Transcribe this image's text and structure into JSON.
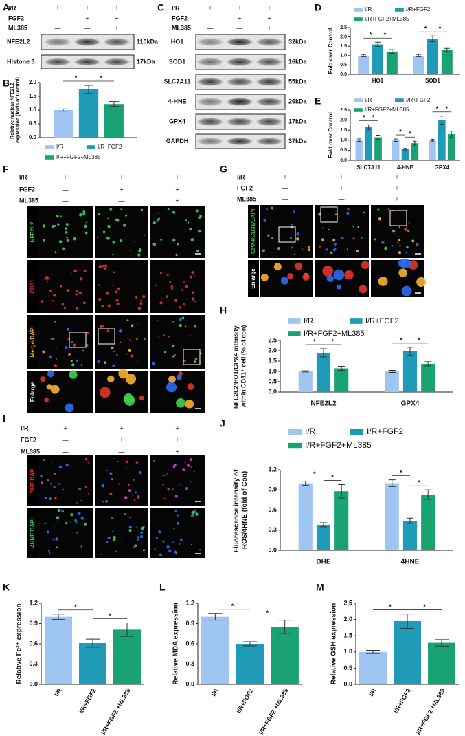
{
  "blots": [
    {
      "label": "A",
      "conditions": [
        {
          "name": "I/R",
          "signs": [
            "+",
            "+",
            "+"
          ]
        },
        {
          "name": "FGF2",
          "signs": [
            "—",
            "+",
            "+"
          ]
        },
        {
          "name": "ML385",
          "signs": [
            "—",
            "—",
            "+"
          ]
        }
      ],
      "bands": [
        {
          "name": "NFE2L2",
          "size": "110kDa"
        },
        {
          "name": "Histone 3",
          "size": "17kDa"
        }
      ]
    },
    {
      "label": "C",
      "conditions": [
        {
          "name": "I/R",
          "signs": [
            "+",
            "+",
            "+"
          ]
        },
        {
          "name": "FGF2",
          "signs": [
            "—",
            "+",
            "+"
          ]
        },
        {
          "name": "ML385",
          "signs": [
            "—",
            "—",
            "+"
          ]
        }
      ],
      "bands": [
        {
          "name": "HO1",
          "size": "32kDa"
        },
        {
          "name": "SOD1",
          "size": "16kDa"
        },
        {
          "name": "SLC7A11",
          "size": "55kDa"
        },
        {
          "name": "4-HNE",
          "size": "26kDa"
        },
        {
          "name": "GPX4",
          "size": "17kDa"
        },
        {
          "name": "GAPDH",
          "size": "37kDa"
        }
      ]
    }
  ],
  "micrographs": [
    {
      "label": "F",
      "conditions": [
        {
          "name": "I/R",
          "signs": [
            "+",
            "+",
            "+"
          ]
        },
        {
          "name": "FGF2",
          "signs": [
            "—",
            "+",
            "+"
          ]
        },
        {
          "name": "ML385",
          "signs": [
            "—",
            "—",
            "+"
          ]
        }
      ],
      "rows": [
        "NFE2L2",
        "CD31",
        "Merge/DAPI",
        "Enlarge"
      ]
    },
    {
      "label": "G",
      "conditions": [
        {
          "name": "I/R",
          "signs": [
            "+",
            "+",
            "+"
          ]
        },
        {
          "name": "FGF2",
          "signs": [
            "—",
            "+",
            "+"
          ]
        },
        {
          "name": "ML385",
          "signs": [
            "—",
            "—",
            "+"
          ]
        }
      ],
      "rows": [
        "GPX4/CD31/DAPI",
        "Enlarge"
      ]
    },
    {
      "label": "I",
      "conditions": [
        {
          "name": "I/R",
          "signs": [
            "+",
            "+",
            "+"
          ]
        },
        {
          "name": "FGF2",
          "signs": [
            "—",
            "+",
            "+"
          ]
        },
        {
          "name": "ML385",
          "signs": [
            "—",
            "—",
            "+"
          ]
        }
      ],
      "rows": [
        "DHE/DAPI",
        "4HNE/DAPI"
      ]
    }
  ],
  "chart_data": [
    {
      "type": "bar",
      "label": "B",
      "ylabel": "Relative nuclear NFE2L2 expression (folds of Control)",
      "categories": [
        null
      ],
      "series": [
        {
          "name": "I/R",
          "color": "#9fc5f2",
          "values": [
            1.0
          ],
          "errors": [
            0.04
          ]
        },
        {
          "name": "I/R+FGF2",
          "color": "#1f9bb8",
          "values": [
            1.75
          ],
          "errors": [
            0.15
          ]
        },
        {
          "name": "I/R+FGF2+ML385",
          "color": "#19a274",
          "values": [
            1.22
          ],
          "errors": [
            0.09
          ]
        }
      ],
      "ylim": [
        0,
        2.0
      ],
      "yticks": [
        {
          "value": 0,
          "label": "0.0"
        },
        0.5,
        {
          "value": 1,
          "label": "1.0"
        },
        1.5,
        {
          "value": 2,
          "label": "2.0"
        }
      ],
      "legend": "bottom",
      "annotations": [
        {
          "text": "*",
          "category": 0,
          "between": [
            0,
            1
          ]
        },
        {
          "text": "*",
          "category": 0,
          "between": [
            1,
            2
          ]
        }
      ]
    },
    {
      "type": "bar",
      "label": "D",
      "ylabel": "Fold over Control",
      "categories": [
        "HO1",
        "SOD1"
      ],
      "series": [
        {
          "name": "I/R",
          "color": "#9fc5f2",
          "values": [
            1.0,
            1.0
          ],
          "errors": [
            0.06,
            0.06
          ]
        },
        {
          "name": "I/R+FGF2",
          "color": "#1f9bb8",
          "values": [
            1.6,
            1.9
          ],
          "errors": [
            0.12,
            0.15
          ]
        },
        {
          "name": "I/R+FGF2+ML385",
          "color": "#19a274",
          "values": [
            1.22,
            1.3
          ],
          "errors": [
            0.1,
            0.09
          ]
        }
      ],
      "ylim": [
        0,
        2.5
      ],
      "yticks": [
        {
          "value": 0,
          "label": "0.0"
        },
        0.5,
        {
          "value": 1,
          "label": "1.0"
        },
        1.5,
        {
          "value": 2,
          "label": "2.0"
        },
        2.5
      ],
      "legend": "top",
      "annotations": [
        {
          "text": "*",
          "category": 0,
          "between": [
            0,
            1
          ]
        },
        {
          "text": "*",
          "category": 0,
          "between": [
            1,
            2
          ]
        },
        {
          "text": "*",
          "category": 1,
          "between": [
            0,
            1
          ]
        },
        {
          "text": "*",
          "category": 1,
          "between": [
            1,
            2
          ]
        }
      ]
    },
    {
      "type": "bar",
      "label": "E",
      "ylabel": "Fold over Control",
      "categories": [
        "SLC7A11",
        "4-HNE",
        "GPX4"
      ],
      "series": [
        {
          "name": "I/R",
          "color": "#9fc5f2",
          "values": [
            1.0,
            1.0,
            1.0
          ],
          "errors": [
            0.06,
            0.06,
            0.05
          ]
        },
        {
          "name": "I/R+FGF2",
          "color": "#1f9bb8",
          "values": [
            1.65,
            0.55,
            2.0
          ],
          "errors": [
            0.12,
            0.04,
            0.2
          ]
        },
        {
          "name": "I/R+FGF2+ML385",
          "color": "#19a274",
          "values": [
            1.15,
            0.85,
            1.3
          ],
          "errors": [
            0.1,
            0.1,
            0.15
          ]
        }
      ],
      "ylim": [
        0,
        2.5
      ],
      "yticks": [
        {
          "value": 0,
          "label": "0.0"
        },
        0.5,
        {
          "value": 1,
          "label": "1.0"
        },
        1.5,
        {
          "value": 2,
          "label": "2.0"
        },
        2.5
      ],
      "legend": "top",
      "annotations": [
        {
          "text": "*",
          "category": 0,
          "between": [
            0,
            1
          ]
        },
        {
          "text": "*",
          "category": 0,
          "between": [
            1,
            2
          ]
        },
        {
          "text": "*",
          "category": 1,
          "between": [
            0,
            1
          ]
        },
        {
          "text": "*",
          "category": 1,
          "between": [
            1,
            2
          ]
        },
        {
          "text": "*",
          "category": 2,
          "between": [
            0,
            1
          ]
        },
        {
          "text": "*",
          "category": 2,
          "between": [
            1,
            2
          ]
        }
      ]
    },
    {
      "type": "bar",
      "label": "H",
      "ylabel": "NFE2L2/HO1/GPX4 intensity within CD31⁺ cell (% of con)",
      "categories": [
        "NFE2L2",
        "GPX4"
      ],
      "series": [
        {
          "name": "I/R",
          "color": "#9fc5f2",
          "values": [
            1.0,
            1.0
          ],
          "errors": [
            0.03,
            0.05
          ]
        },
        {
          "name": "I/R+FGF2",
          "color": "#1f9bb8",
          "values": [
            1.9,
            1.97
          ],
          "errors": [
            0.2,
            0.2
          ]
        },
        {
          "name": "I/R+FGF2+ML385",
          "color": "#19a274",
          "values": [
            1.15,
            1.37
          ],
          "errors": [
            0.1,
            0.1
          ]
        }
      ],
      "ylim": [
        0,
        2.5
      ],
      "yticks": [
        {
          "value": 0,
          "label": "0.0"
        },
        0.5,
        {
          "value": 1,
          "label": "1.0"
        },
        1.5,
        {
          "value": 2,
          "label": "2.0"
        },
        2.5
      ],
      "legend": "top",
      "annotations": [
        {
          "text": "*",
          "category": 0,
          "between": [
            0,
            1
          ]
        },
        {
          "text": "*",
          "category": 0,
          "between": [
            1,
            2
          ]
        },
        {
          "text": "*",
          "category": 1,
          "between": [
            0,
            1
          ]
        },
        {
          "text": "*",
          "category": 1,
          "between": [
            1,
            2
          ]
        }
      ]
    },
    {
      "type": "bar",
      "label": "J",
      "ylabel": "Fluorescence intensity of ROS/4HNE (fold of Con)",
      "categories": [
        "DHE",
        "4HNE"
      ],
      "series": [
        {
          "name": "I/R",
          "color": "#9fc5f2",
          "values": [
            1.0,
            1.0
          ],
          "errors": [
            0.03,
            0.05
          ]
        },
        {
          "name": "I/R+FGF2",
          "color": "#1f9bb8",
          "values": [
            0.38,
            0.44
          ],
          "errors": [
            0.03,
            0.04
          ]
        },
        {
          "name": "I/R+FGF2+ML385",
          "color": "#19a274",
          "values": [
            0.88,
            0.83
          ],
          "errors": [
            0.1,
            0.07
          ]
        }
      ],
      "ylim": [
        0,
        1.2
      ],
      "yticks": [
        {
          "value": 0,
          "label": "0.0"
        },
        0.3,
        0.6,
        0.9,
        1.2
      ],
      "legend": "top",
      "annotations": [
        {
          "text": "*",
          "category": 0,
          "between": [
            0,
            1
          ]
        },
        {
          "text": "*",
          "category": 0,
          "between": [
            1,
            2
          ]
        },
        {
          "text": "*",
          "category": 1,
          "between": [
            0,
            1
          ]
        },
        {
          "text": "*",
          "category": 1,
          "between": [
            1,
            2
          ]
        }
      ]
    },
    {
      "type": "bar",
      "label": "K",
      "ylabel": "Relative Fe²⁺ expression",
      "categories": [
        "I/R",
        "I/R+FGF2",
        "I/R+FGF2 +ML385"
      ],
      "values": [
        1.0,
        0.61,
        0.81
      ],
      "errors": [
        0.04,
        0.06,
        0.1
      ],
      "colors": [
        "#9fc5f2",
        "#1f9bb8",
        "#19a274"
      ],
      "ylim": [
        0,
        1.2
      ],
      "yticks": [
        {
          "value": 0,
          "label": "0.0"
        },
        0.3,
        0.6,
        0.9,
        1.2
      ],
      "annotations": [
        {
          "text": "*",
          "between": [
            0,
            1
          ]
        },
        {
          "text": "*",
          "between": [
            1,
            2
          ]
        }
      ]
    },
    {
      "type": "bar",
      "label": "L",
      "ylabel": "Relative MDA expression",
      "categories": [
        "I/R",
        "I/R+FGF2",
        "I/R+FGF2 +ML385"
      ],
      "values": [
        1.0,
        0.6,
        0.85
      ],
      "errors": [
        0.05,
        0.03,
        0.1
      ],
      "colors": [
        "#9fc5f2",
        "#1f9bb8",
        "#19a274"
      ],
      "ylim": [
        0,
        1.2
      ],
      "yticks": [
        {
          "value": 0,
          "label": "0.0"
        },
        0.3,
        0.6,
        0.9,
        1.2
      ],
      "annotations": [
        {
          "text": "*",
          "between": [
            0,
            1
          ]
        },
        {
          "text": "*",
          "between": [
            1,
            2
          ]
        }
      ]
    },
    {
      "type": "bar",
      "label": "M",
      "ylabel": "Relative GSH expression",
      "categories": [
        "I/R",
        "I/R+FGF2",
        "I/R+FGF2 +ML385"
      ],
      "values": [
        1.0,
        1.95,
        1.28
      ],
      "errors": [
        0.05,
        0.22,
        0.1
      ],
      "colors": [
        "#9fc5f2",
        "#1f9bb8",
        "#19a274"
      ],
      "ylim": [
        0,
        2.5
      ],
      "yticks": [
        {
          "value": 0,
          "label": "0.0"
        },
        0.5,
        {
          "value": 1,
          "label": "1.0"
        },
        1.5,
        {
          "value": 2,
          "label": "2.0"
        },
        2.5
      ],
      "annotations": [
        {
          "text": "*",
          "between": [
            0,
            1
          ]
        },
        {
          "text": "*",
          "between": [
            1,
            2
          ]
        }
      ]
    }
  ]
}
